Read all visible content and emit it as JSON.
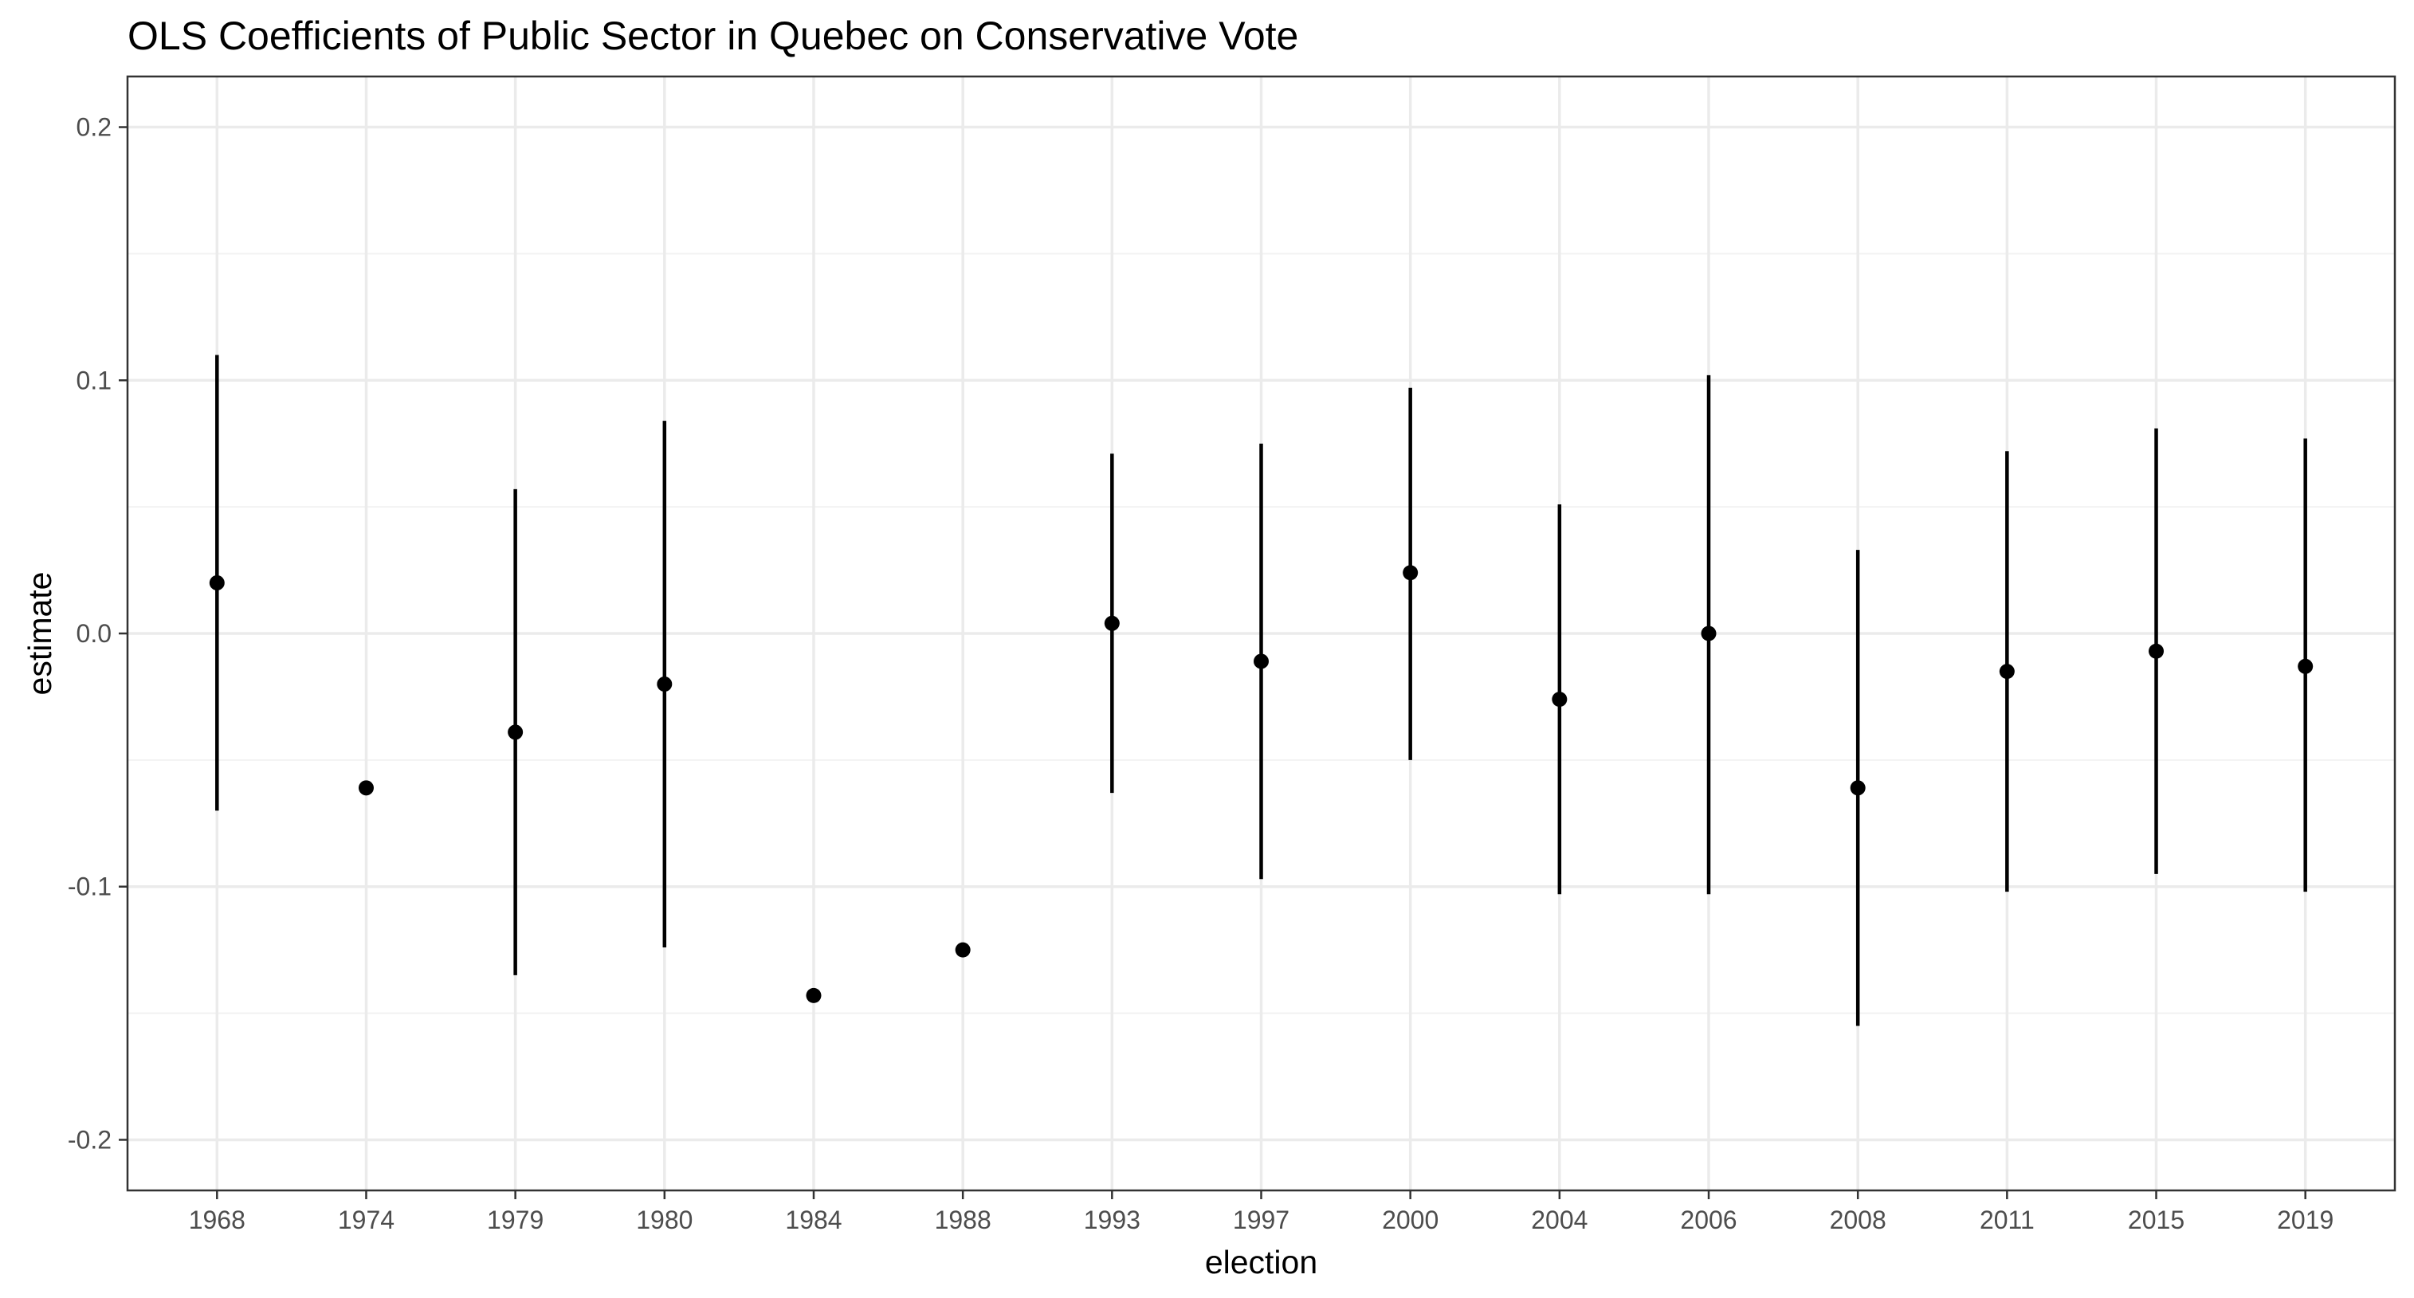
{
  "chart_data": {
    "type": "scatter",
    "title": "OLS Coefficients of Public Sector in Quebec on Conservative Vote",
    "xlabel": "election",
    "ylabel": "estimate",
    "ylim": [
      -0.22,
      0.22
    ],
    "y_ticks": [
      -0.2,
      -0.1,
      0.0,
      0.1,
      0.2
    ],
    "y_tick_labels": [
      "-0.2",
      "-0.1",
      "0.0",
      "0.1",
      "0.2"
    ],
    "y_minor_ticks": [
      -0.15,
      -0.05,
      0.05,
      0.15
    ],
    "grid": true,
    "legend": "none",
    "categories": [
      "1968",
      "1974",
      "1979",
      "1980",
      "1984",
      "1988",
      "1993",
      "1997",
      "2000",
      "2004",
      "2006",
      "2008",
      "2011",
      "2015",
      "2019"
    ],
    "points": [
      {
        "election": "1968",
        "estimate": 0.02,
        "lower": -0.07,
        "upper": 0.11
      },
      {
        "election": "1974",
        "estimate": -0.061,
        "lower": null,
        "upper": null
      },
      {
        "election": "1979",
        "estimate": -0.039,
        "lower": -0.135,
        "upper": 0.057
      },
      {
        "election": "1980",
        "estimate": -0.02,
        "lower": -0.124,
        "upper": 0.084
      },
      {
        "election": "1984",
        "estimate": -0.143,
        "lower": null,
        "upper": null
      },
      {
        "election": "1988",
        "estimate": -0.125,
        "lower": null,
        "upper": null
      },
      {
        "election": "1993",
        "estimate": 0.004,
        "lower": -0.063,
        "upper": 0.071
      },
      {
        "election": "1997",
        "estimate": -0.011,
        "lower": -0.097,
        "upper": 0.075
      },
      {
        "election": "2000",
        "estimate": 0.024,
        "lower": -0.05,
        "upper": 0.097
      },
      {
        "election": "2004",
        "estimate": -0.026,
        "lower": -0.103,
        "upper": 0.051
      },
      {
        "election": "2006",
        "estimate": 0.0,
        "lower": -0.103,
        "upper": 0.102
      },
      {
        "election": "2008",
        "estimate": -0.061,
        "lower": -0.155,
        "upper": 0.033
      },
      {
        "election": "2011",
        "estimate": -0.015,
        "lower": -0.102,
        "upper": 0.072
      },
      {
        "election": "2015",
        "estimate": -0.007,
        "lower": -0.095,
        "upper": 0.081
      },
      {
        "election": "2019",
        "estimate": -0.013,
        "lower": -0.102,
        "upper": 0.077
      }
    ],
    "colors": {
      "background": "#ffffff",
      "grid": "#ebebeb",
      "points": "#000000",
      "border": "#333333",
      "tick_text": "#4d4d4d"
    }
  }
}
